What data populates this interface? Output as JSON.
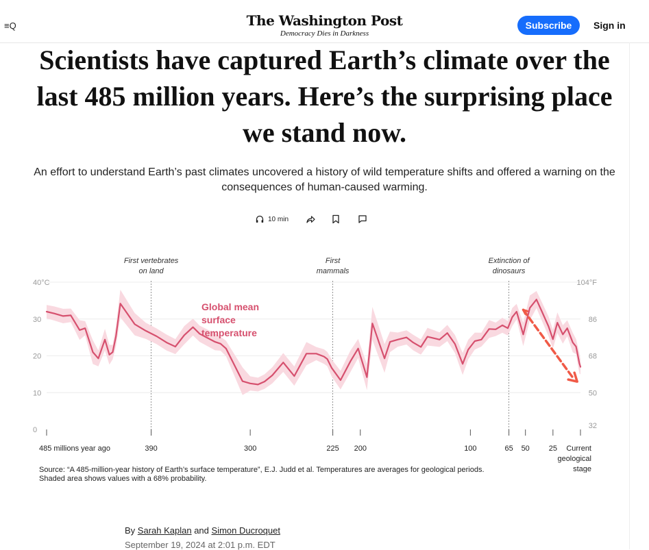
{
  "header": {
    "menu_label": "≡Q",
    "logo_title": "The Washington Post",
    "logo_tagline": "Democracy Dies in Darkness",
    "subscribe_label": "Subscribe",
    "signin_label": "Sign in"
  },
  "article": {
    "headline": "Scientists have captured Earth’s climate over the last 485 million years. Here’s the surprising place we stand now.",
    "dek": "An effort to understand Earth’s past climates uncovered a history of wild temperature shifts and offered a warning on the consequences of human-caused warming.",
    "read_time": "10 min",
    "byline_prefix": "By",
    "author_1": "Sarah Kaplan",
    "byline_and": "and",
    "author_2": "Simon Ducroquet",
    "date": "September 19, 2024 at 2:01 p.m. EDT"
  },
  "icons": {
    "listen": "headphones-icon",
    "share": "share-icon",
    "save": "bookmark-icon",
    "comment": "comment-icon"
  },
  "chart_data": {
    "type": "line",
    "series_label": "Global mean surface temperature",
    "series_color": "#D6506E",
    "band_color": "#F9D9E0",
    "arrow_color": "#F05A47",
    "x_unit": "millions of years ago",
    "xlim": [
      485,
      0
    ],
    "ylim_c": [
      0,
      40
    ],
    "y_ticks_c": [
      "0",
      "10",
      "20",
      "30",
      "40°C"
    ],
    "y_ticks_f": [
      "32",
      "50",
      "68",
      "86",
      "104°F"
    ],
    "y_tick_values_c": [
      0,
      10,
      20,
      30,
      40
    ],
    "x_ticks": [
      {
        "value": 485,
        "label": "485 millions year ago"
      },
      {
        "value": 390,
        "label": "390"
      },
      {
        "value": 300,
        "label": "300"
      },
      {
        "value": 225,
        "label": "225"
      },
      {
        "value": 200,
        "label": "200"
      },
      {
        "value": 100,
        "label": "100"
      },
      {
        "value": 65,
        "label": "65"
      },
      {
        "value": 50,
        "label": "50"
      },
      {
        "value": 25,
        "label": "25"
      },
      {
        "value": 0,
        "label": "Current geological stage"
      }
    ],
    "annotations": [
      {
        "value": 390,
        "label": "First vertebrates on land"
      },
      {
        "value": 225,
        "label": "First mammals"
      },
      {
        "value": 65,
        "label": "Extinction of dinosaurs"
      }
    ],
    "x": [
      485,
      478,
      470,
      463,
      455,
      450,
      443,
      438,
      432,
      428,
      425,
      422,
      418,
      405,
      395,
      385,
      376,
      368,
      360,
      352,
      346,
      332,
      327,
      322,
      307,
      300,
      293,
      287,
      280,
      270,
      260,
      249,
      240,
      233,
      230,
      226,
      218,
      209,
      202,
      194,
      189,
      178,
      173,
      166,
      158,
      152,
      145,
      139,
      128,
      121,
      114,
      107,
      102,
      96,
      90,
      83,
      77,
      71,
      66,
      62,
      58,
      52,
      46,
      40,
      35,
      29,
      25,
      21,
      16,
      12,
      7,
      4,
      1,
      0
    ],
    "y": [
      32,
      31.5,
      30.8,
      31,
      27,
      27.5,
      21,
      19.3,
      24.4,
      20.3,
      21,
      25.3,
      34.2,
      28.6,
      26.8,
      25.3,
      23.6,
      22.5,
      25.6,
      27.8,
      26,
      23.8,
      23.3,
      22,
      13.1,
      12.5,
      12.2,
      13,
      14.7,
      18.2,
      14.5,
      20.6,
      20.6,
      19.8,
      19.1,
      16.7,
      13.4,
      18.5,
      22,
      14.2,
      28.8,
      19.3,
      23.8,
      24.4,
      25,
      23.6,
      22.4,
      25.2,
      24.4,
      26.2,
      23.2,
      17.8,
      21.7,
      24,
      24.4,
      27.3,
      27.2,
      28.3,
      27.5,
      30.5,
      32,
      25.8,
      33,
      35.3,
      32,
      28,
      24.5,
      29,
      25.8,
      27.5,
      23.6,
      22.5,
      18,
      17
    ]
  },
  "chart_text": {
    "series_label_lines": [
      "Global mean",
      "surface",
      "temperature"
    ],
    "annotation_lines": [
      [
        "First vertebrates",
        "on land"
      ],
      [
        "First",
        "mammals"
      ],
      [
        "Extinction of",
        "dinosaurs"
      ]
    ],
    "current_label_lines": [
      "Current",
      "geological",
      "stage"
    ]
  },
  "source_note": "Source: “A 485-million-year history of Earth’s surface temperature”, E.J. Judd et al. Temperatures are averages for geological periods. Shaded area shows values with a 68% probability."
}
